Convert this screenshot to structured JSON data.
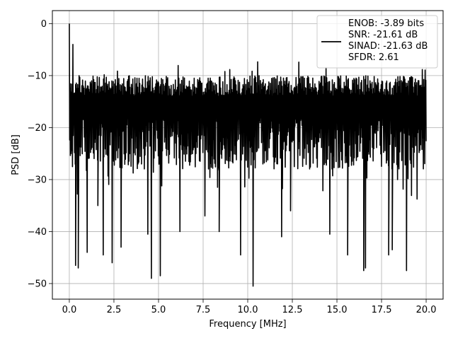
{
  "chart_data": {
    "type": "line",
    "title": "",
    "xlabel": "Frequency [MHz]",
    "ylabel": "PSD [dB]",
    "xlim": [
      -0.95,
      20.95
    ],
    "ylim": [
      -53.0,
      2.5
    ],
    "x_ticks": [
      0.0,
      2.5,
      5.0,
      7.5,
      10.0,
      12.5,
      15.0,
      17.5,
      20.0
    ],
    "x_tick_labels": [
      "0.0",
      "2.5",
      "5.0",
      "7.5",
      "10.0",
      "12.5",
      "15.0",
      "17.5",
      "20.0"
    ],
    "y_ticks": [
      0,
      -10,
      -20,
      -30,
      -40,
      -50
    ],
    "y_tick_labels": [
      "0",
      "−10",
      "−20",
      "−30",
      "−40",
      "−50"
    ],
    "grid": true,
    "legend_position": "top-right",
    "legend_text": [
      "ENOB: -3.89 bits",
      "SNR: -21.61 dB",
      "SINAD: -21.63 dB",
      "SFDR: 2.61"
    ],
    "line_color": "#000000",
    "series": [
      {
        "x_range": [
          0.0,
          20.0
        ],
        "n_points": 1024,
        "peak": {
          "x": 0.0,
          "y": 0.0
        },
        "early_peak": {
          "x": 0.2,
          "y": -4.0
        },
        "typical_upper": -10.0,
        "typical_lower": -28.0,
        "deep_nulls": [
          {
            "x": 0.35,
            "y": -46.5
          },
          {
            "x": 0.5,
            "y": -47.0
          },
          {
            "x": 1.0,
            "y": -44.0
          },
          {
            "x": 1.6,
            "y": -35.0
          },
          {
            "x": 1.9,
            "y": -44.5
          },
          {
            "x": 2.4,
            "y": -46.0
          },
          {
            "x": 2.9,
            "y": -43.0
          },
          {
            "x": 4.4,
            "y": -40.5
          },
          {
            "x": 4.6,
            "y": -49.0
          },
          {
            "x": 5.1,
            "y": -48.5
          },
          {
            "x": 6.2,
            "y": -40.0
          },
          {
            "x": 7.6,
            "y": -37.0
          },
          {
            "x": 8.4,
            "y": -40.0
          },
          {
            "x": 9.6,
            "y": -44.5
          },
          {
            "x": 10.3,
            "y": -50.5
          },
          {
            "x": 11.9,
            "y": -41.0
          },
          {
            "x": 12.4,
            "y": -36.0
          },
          {
            "x": 14.6,
            "y": -40.5
          },
          {
            "x": 15.6,
            "y": -44.5
          },
          {
            "x": 16.5,
            "y": -47.5
          },
          {
            "x": 16.6,
            "y": -47.0
          },
          {
            "x": 17.9,
            "y": -44.5
          },
          {
            "x": 18.1,
            "y": -43.5
          },
          {
            "x": 18.9,
            "y": -47.5
          }
        ]
      }
    ]
  }
}
